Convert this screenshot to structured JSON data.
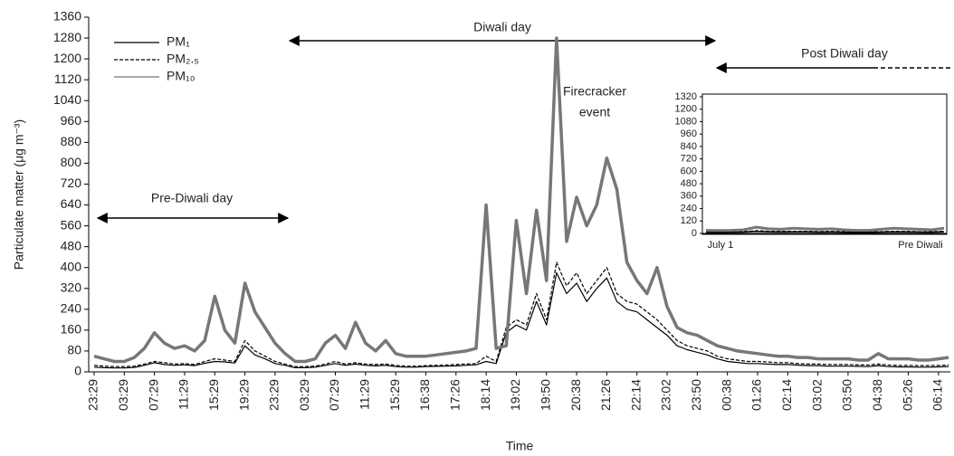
{
  "chart_data": [
    {
      "type": "line",
      "y_label": "Particulate matter (μg m⁻³)",
      "x_label": "Time",
      "annotations": [
        "Pre-Diwali day",
        "Diwali day",
        "Post Diwali day",
        [
          "Firecracker",
          "event"
        ]
      ],
      "legend": "upper left",
      "categories": [
        "23:29",
        null,
        null,
        "03:29",
        null,
        null,
        "07:29",
        null,
        null,
        "11:29",
        null,
        null,
        "15:29",
        null,
        null,
        "19:29",
        null,
        null,
        "23:29",
        null,
        null,
        "03:29",
        null,
        null,
        "07:29",
        null,
        null,
        "11:29",
        null,
        null,
        "15:29",
        null,
        null,
        "16:38",
        null,
        null,
        "17:26",
        null,
        null,
        "18:14",
        null,
        null,
        "19:02",
        null,
        null,
        "19:50",
        null,
        null,
        "20:38",
        null,
        null,
        "21:26",
        null,
        null,
        "22:14",
        null,
        null,
        "23:02",
        null,
        null,
        "23:50",
        null,
        null,
        "00:38",
        null,
        null,
        "01:26",
        null,
        null,
        "02:14",
        null,
        null,
        "03:02",
        null,
        null,
        "03:50",
        null,
        null,
        "04:38",
        null,
        null,
        "05:26",
        null,
        null,
        "06:14",
        null
      ],
      "series": [
        {
          "name": "PM₁",
          "color": "#000000",
          "dashed": false,
          "values": [
            18,
            16,
            15,
            15,
            17,
            25,
            35,
            28,
            25,
            27,
            24,
            33,
            40,
            38,
            34,
            100,
            65,
            50,
            32,
            25,
            16,
            16,
            18,
            25,
            32,
            25,
            30,
            25,
            23,
            25,
            20,
            18,
            18,
            20,
            21,
            22,
            23,
            25,
            27,
            40,
            32,
            150,
            180,
            160,
            270,
            180,
            380,
            300,
            340,
            270,
            320,
            360,
            270,
            240,
            230,
            200,
            170,
            140,
            100,
            85,
            75,
            65,
            50,
            40,
            36,
            32,
            32,
            30,
            28,
            28,
            26,
            24,
            24,
            22,
            22,
            22,
            21,
            20,
            24,
            20,
            19,
            19,
            18,
            18,
            19,
            20
          ]
        },
        {
          "name": "PM₂.₅",
          "color": "#000000",
          "dashed": true,
          "values": [
            25,
            22,
            20,
            20,
            22,
            30,
            40,
            35,
            30,
            32,
            28,
            40,
            50,
            45,
            40,
            120,
            80,
            60,
            40,
            30,
            20,
            20,
            22,
            30,
            40,
            30,
            35,
            30,
            28,
            30,
            25,
            22,
            22,
            24,
            25,
            26,
            28,
            30,
            32,
            60,
            40,
            170,
            200,
            180,
            300,
            200,
            420,
            330,
            380,
            300,
            350,
            400,
            300,
            270,
            260,
            230,
            200,
            160,
            120,
            100,
            90,
            80,
            60,
            50,
            45,
            40,
            40,
            38,
            35,
            35,
            32,
            30,
            30,
            28,
            28,
            28,
            27,
            26,
            30,
            26,
            25,
            25,
            24,
            24,
            25,
            26
          ]
        },
        {
          "name": "PM₁₀",
          "color": "#777777",
          "dashed": false,
          "values": [
            60,
            50,
            40,
            40,
            55,
            90,
            150,
            110,
            90,
            100,
            80,
            120,
            290,
            160,
            110,
            340,
            230,
            170,
            110,
            70,
            40,
            40,
            50,
            110,
            140,
            90,
            190,
            110,
            80,
            120,
            70,
            60,
            60,
            60,
            65,
            70,
            75,
            80,
            90,
            640,
            90,
            100,
            580,
            300,
            620,
            350,
            1280,
            500,
            670,
            560,
            640,
            820,
            700,
            420,
            350,
            300,
            400,
            250,
            170,
            150,
            140,
            120,
            100,
            90,
            80,
            75,
            70,
            65,
            60,
            60,
            55,
            55,
            50,
            50,
            50,
            50,
            45,
            45,
            70,
            50,
            50,
            50,
            45,
            45,
            50,
            55
          ]
        }
      ],
      "ylim": [
        0,
        1360
      ],
      "yticks": [
        0,
        80,
        160,
        240,
        320,
        400,
        480,
        560,
        640,
        720,
        800,
        880,
        960,
        1040,
        1120,
        1200,
        1280,
        1360
      ]
    },
    {
      "type": "line",
      "categories": [
        "July 1",
        null,
        null,
        null,
        null,
        null,
        null,
        null,
        null,
        null,
        null,
        null,
        null,
        null,
        null,
        null,
        null,
        null,
        null,
        "Pre Diwali"
      ],
      "series": [
        {
          "name": "PM₁",
          "color": "#000000",
          "dashed": false,
          "values": [
            12,
            11,
            12,
            13,
            20,
            16,
            14,
            16,
            15,
            13,
            14,
            12,
            11,
            11,
            13,
            16,
            14,
            13,
            12,
            16
          ]
        },
        {
          "name": "PM₂.₅",
          "color": "#000000",
          "dashed": true,
          "values": [
            15,
            14,
            15,
            16,
            25,
            20,
            18,
            20,
            19,
            17,
            18,
            15,
            14,
            14,
            16,
            20,
            18,
            16,
            15,
            20
          ]
        },
        {
          "name": "PM₁₀",
          "color": "#777777",
          "dashed": false,
          "values": [
            30,
            28,
            30,
            35,
            60,
            45,
            40,
            50,
            45,
            40,
            45,
            35,
            30,
            30,
            40,
            50,
            45,
            40,
            35,
            50
          ]
        }
      ],
      "ylim": [
        0,
        1320
      ],
      "yticks": [
        0,
        120,
        240,
        360,
        480,
        600,
        720,
        840,
        960,
        1080,
        1200,
        1320
      ]
    }
  ]
}
